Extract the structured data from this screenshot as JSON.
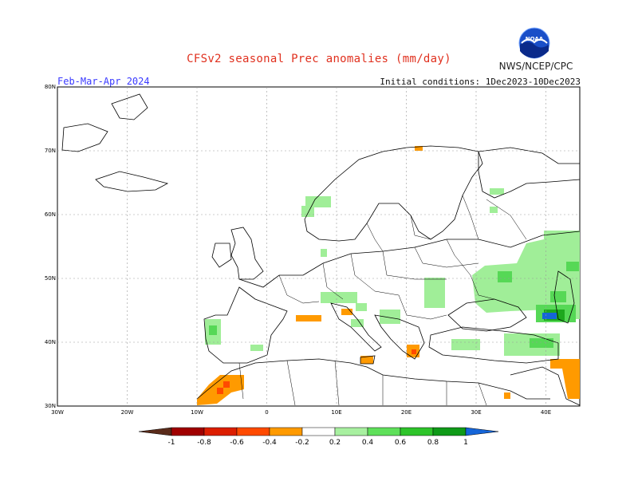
{
  "title": "CFSv2 seasonal Prec anomalies (mm/day)",
  "season": "Feb-Mar-Apr 2024",
  "initial_conditions": "Initial conditions: 1Dec2023-10Dec2023",
  "agency": "NWS/NCEP/CPC",
  "logo_text": "NOAA",
  "map": {
    "lat_labels": [
      "80N",
      "70N",
      "60N",
      "50N",
      "40N",
      "30N"
    ],
    "lon_labels": [
      "30W",
      "20W",
      "10W",
      "0",
      "10E",
      "20E",
      "30E",
      "40E"
    ]
  },
  "legend": {
    "labels": [
      "-1",
      "-0.8",
      "-0.6",
      "-0.4",
      "-0.2",
      "0.2",
      "0.4",
      "0.6",
      "0.8",
      "1"
    ],
    "colors": [
      "#5a2b1a",
      "#a00000",
      "#dc1e00",
      "#ff4a00",
      "#ff9a00",
      "#ffffff",
      "#a8f0a0",
      "#5fe05a",
      "#2ec42a",
      "#0f9a18",
      "#1565d8"
    ]
  },
  "colors": {
    "title": "#e0301e",
    "season": "#3a3aff",
    "light_green": "#a0ee98",
    "green": "#56d856",
    "dark_green": "#1ea81e",
    "orange": "#ff9a00",
    "red_orange": "#ff4a00",
    "blue": "#1565d8"
  }
}
